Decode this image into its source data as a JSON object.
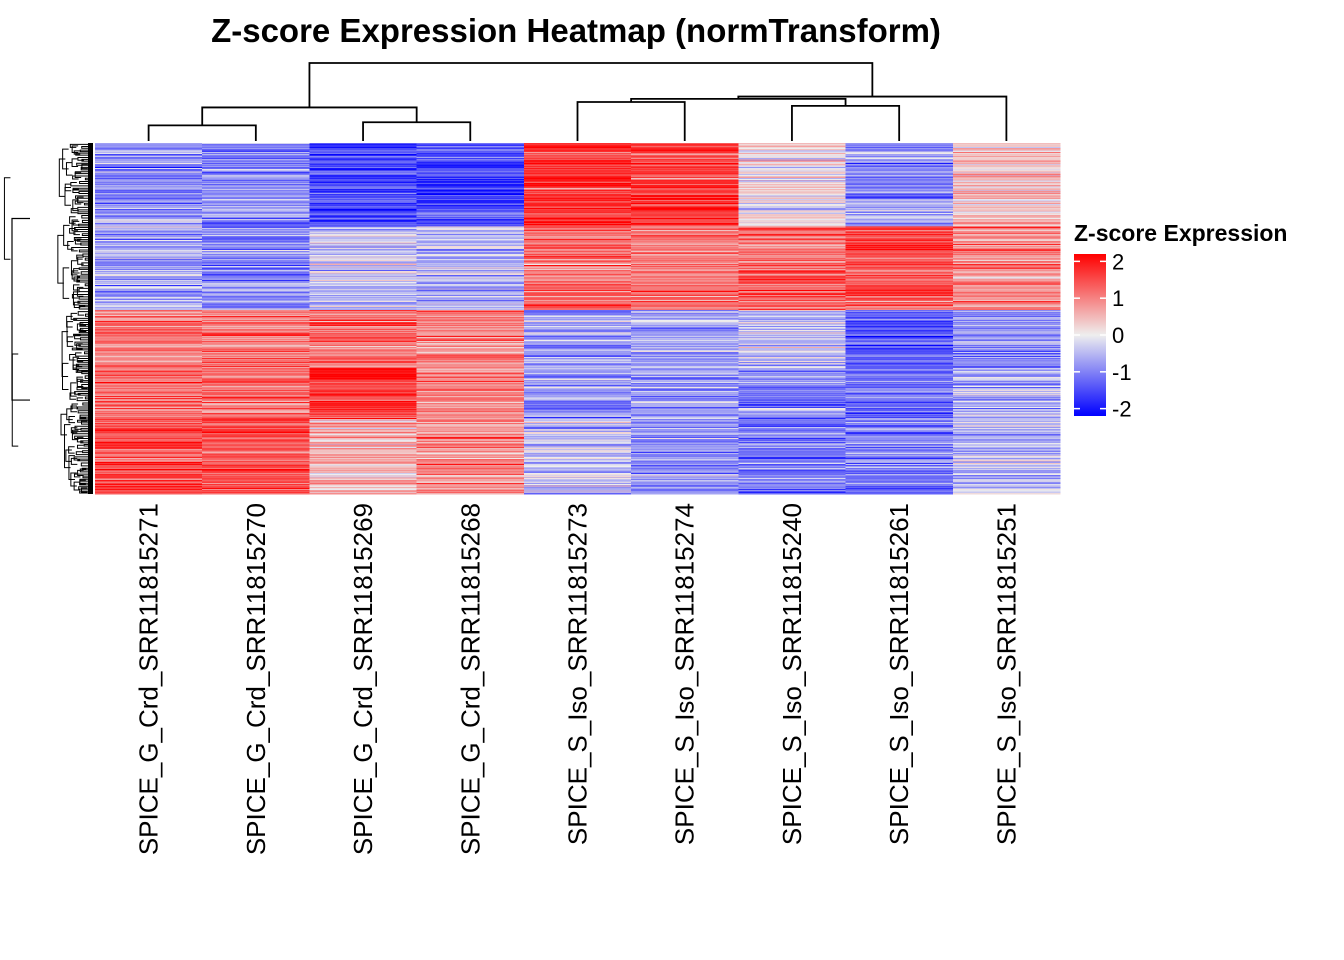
{
  "chart_data": {
    "type": "heatmap",
    "title": "Z-score Expression Heatmap (normTransform)",
    "columns": [
      "SPICE_G_Crd_SRR11815271",
      "SPICE_G_Crd_SRR11815270",
      "SPICE_G_Crd_SRR11815269",
      "SPICE_G_Crd_SRR11815268",
      "SPICE_S_Iso_SRR11815273",
      "SPICE_S_Iso_SRR11815274",
      "SPICE_S_Iso_SRR11815240",
      "SPICE_S_Iso_SRR11815261",
      "SPICE_S_Iso_SRR11815251"
    ],
    "row_blocks": [
      {
        "name": "block-1",
        "rows": 100,
        "means": [
          -0.8,
          -1.0,
          -1.6,
          -1.5,
          1.7,
          1.6,
          0.2,
          -0.9,
          0.4
        ]
      },
      {
        "name": "block-2",
        "rows": 100,
        "means": [
          -0.8,
          -0.9,
          -0.4,
          -0.5,
          1.2,
          1.1,
          1.3,
          1.5,
          1.0
        ]
      },
      {
        "name": "block-3",
        "rows": 70,
        "means": [
          1.1,
          1.2,
          1.3,
          1.0,
          -0.8,
          -0.6,
          -0.4,
          -1.3,
          -0.9
        ]
      },
      {
        "name": "block-4",
        "rows": 60,
        "means": [
          1.2,
          1.1,
          1.8,
          1.0,
          -1.0,
          -0.8,
          -0.9,
          -1.2,
          -0.5
        ]
      },
      {
        "name": "block-5",
        "rows": 90,
        "means": [
          1.5,
          1.5,
          0.5,
          0.9,
          -0.4,
          -0.9,
          -1.0,
          -1.0,
          -0.4
        ]
      }
    ],
    "n_rows": 420,
    "column_dendrogram": {
      "leaves": 9,
      "merges": [
        {
          "a": 0,
          "b": 1,
          "height": 0.2
        },
        {
          "a": 2,
          "b": 3,
          "height": 0.24
        },
        {
          "a": 9,
          "b": 10,
          "height": 0.43
        },
        {
          "a": 4,
          "b": 5,
          "height": 0.5
        },
        {
          "a": 6,
          "b": 7,
          "height": 0.45
        },
        {
          "a": 12,
          "b": 13,
          "height": 0.54
        },
        {
          "a": 14,
          "b": 8,
          "height": 0.57
        },
        {
          "a": 11,
          "b": 15,
          "height": 1.0
        }
      ]
    },
    "legend": {
      "title": "Z-score Expression",
      "ticks": [
        "2",
        "1",
        "0",
        "-1",
        "-2"
      ],
      "range": [
        -2.2,
        2.2
      ],
      "colors": {
        "low": "#0000ff",
        "mid": "#eeeeee",
        "high": "#ff0000"
      }
    }
  }
}
